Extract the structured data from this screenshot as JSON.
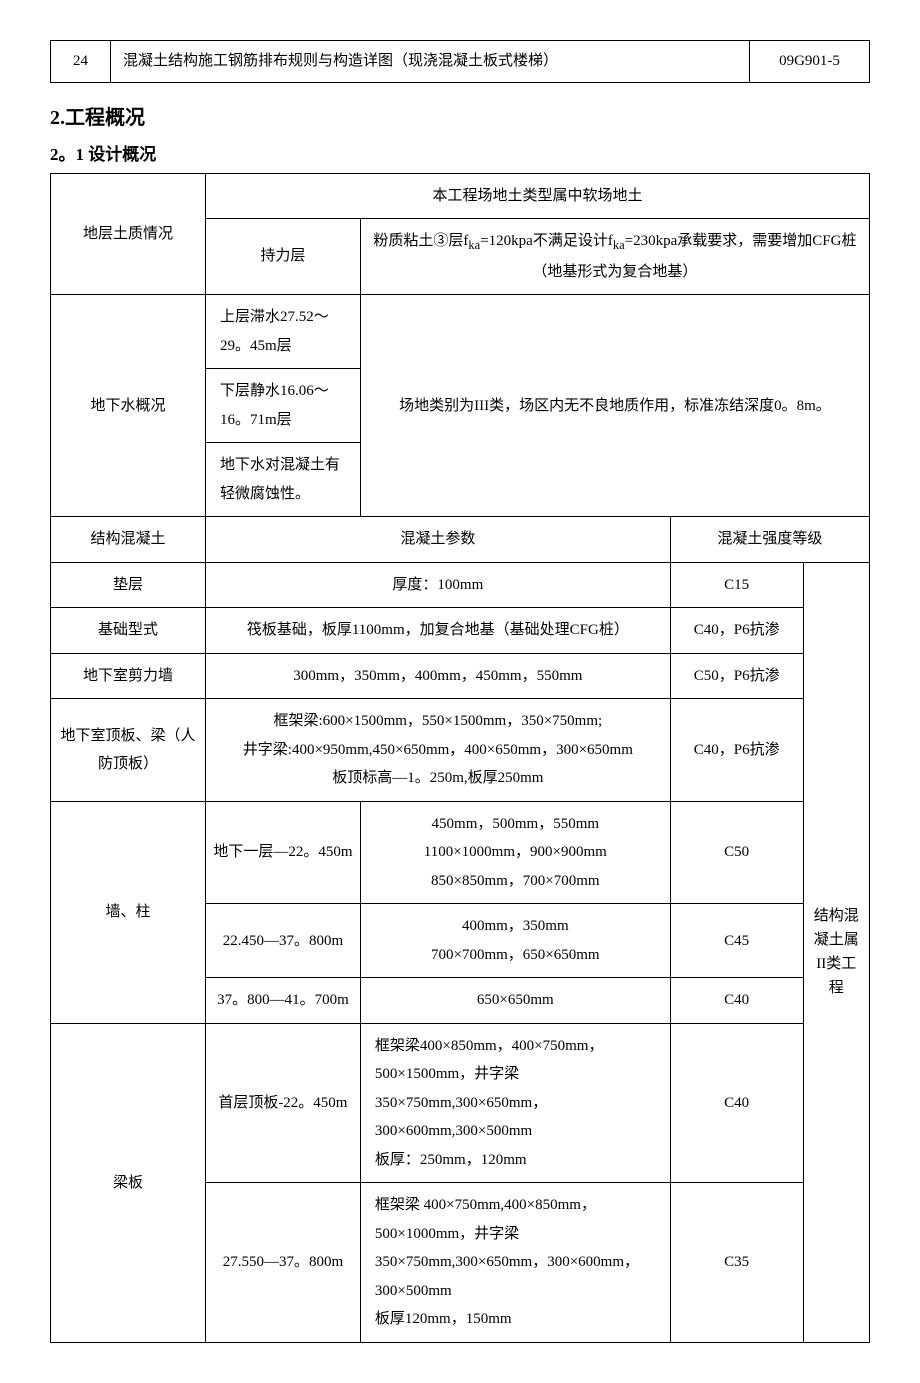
{
  "topTable": {
    "num": "24",
    "title": "混凝土结构施工钢筋排布规则与构造详图（现浇混凝土板式楼梯）",
    "code": "09G901-5"
  },
  "section": "2.工程概况",
  "subsection": "2。1 设计概况",
  "t": {
    "soilLabel": "地层土质情况",
    "soilTop": "本工程场地土类型属中软场地土",
    "bearingLayer": "持力层",
    "bearingNote": "粉质粘土③层f<sub>ka</sub>=120kpa不满足设计f<sub>ka</sub>=230kpa承载要求，需要增加CFG桩（地基形式为复合地基）",
    "gwLabel": "地下水概况",
    "gwLeft1": "上层滞水27.52～29。45m层",
    "gwLeft2": "下层静水16.06～16。71m层",
    "gwLeft3": "地下水对混凝土有轻微腐蚀性。",
    "gwRight": "场地类别为III类，场区内无不良地质作用，标准冻结深度0。8m。",
    "concLabel": "结构混凝土",
    "concParam": "混凝土参数",
    "concGrade": "混凝土强度等级",
    "cushionLabel": "垫层",
    "cushionParam": "厚度：100mm",
    "cushionGrade": "C15",
    "foundLabel": "基础型式",
    "foundParam": "筏板基础，板厚1100mm，加复合地基（基础处理CFG桩）",
    "foundGrade": "C40，P6抗渗",
    "shearLabel": "地下室剪力墙",
    "shearParam": "300mm，350mm，400mm，450mm，550mm",
    "shearGrade": "C50，P6抗渗",
    "roofLabel": "地下室顶板、梁（人防顶板）",
    "roofParam": "框架梁:600×1500mm，550×1500mm，350×750mm;<br>井字梁:400×950mm,450×650mm，400×650mm，300×650mm<br>板顶标高—1。250m,板厚250mm",
    "roofGrade": "C40，P6抗渗",
    "wallColLabel": "墙、柱",
    "wc1Range": "地下一层—22。450m",
    "wc1Dim": "450mm，500mm，550mm<br>1100×1000mm，900×900mm<br>850×850mm，700×700mm",
    "wc1Grade": "C50",
    "wc2Range": "22.450—37。800m",
    "wc2Dim": "400mm，350mm<br>700×700mm，650×650mm",
    "wc2Grade": "C45",
    "wc3Range": "37。800—41。700m",
    "wc3Dim": "650×650mm",
    "wc3Grade": "C40",
    "beamLabel": "梁板",
    "bs1Range": "首层顶板-22。450m",
    "bs1Dim": "框架梁400×850mm，400×750mm，500×1500mm，井字梁 350×750mm,300×650mm，300×600mm,300×500mm<br>板厚：250mm，120mm",
    "bs1Grade": "C40",
    "bs2Range": "27.550—37。800m",
    "bs2Dim": "框架梁 400×750mm,400×850mm，500×1000mm，井字梁350×750mm,300×650mm，300×600mm，300×500mm<br>板厚120mm，150mm",
    "bs2Grade": "C35",
    "sideNote": "结构混凝土属II类工程"
  }
}
